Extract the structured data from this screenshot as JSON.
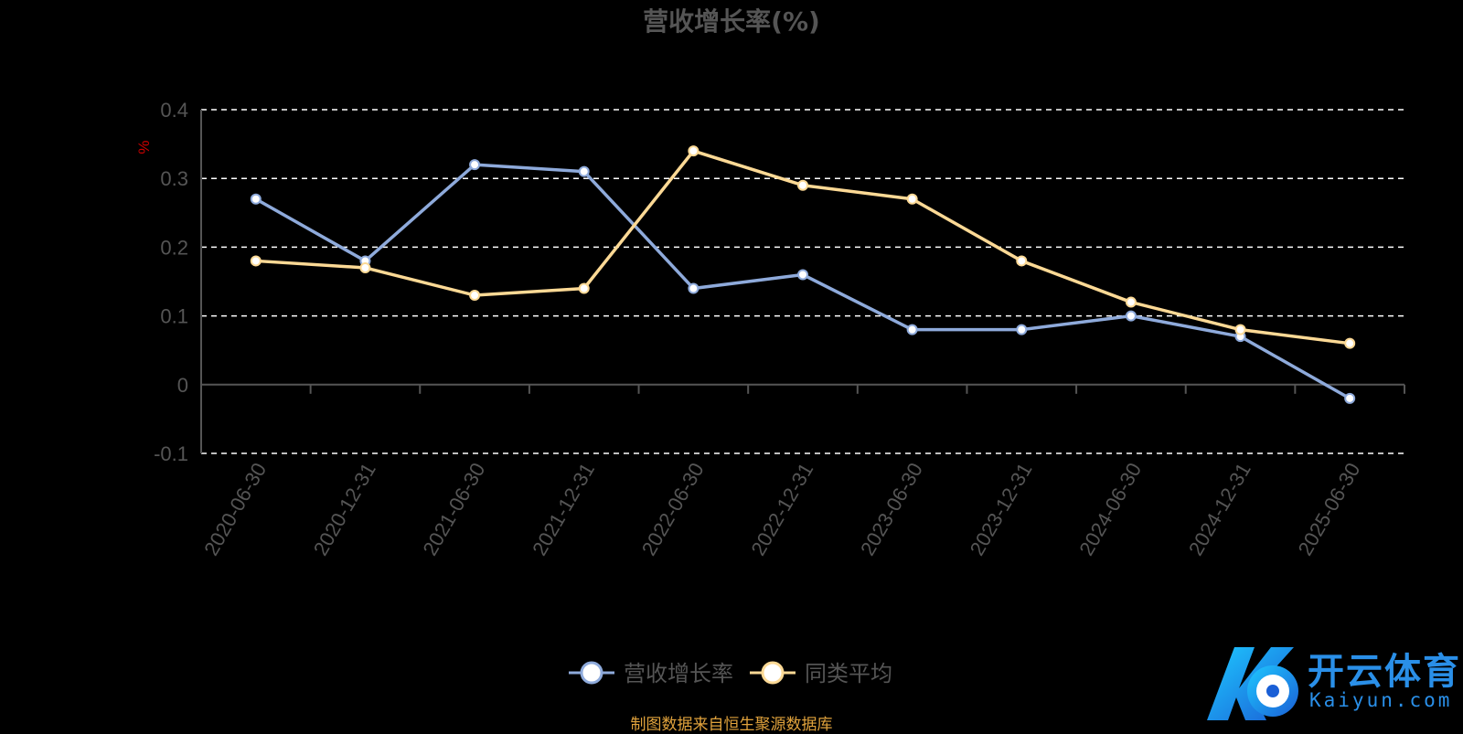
{
  "chart_data": {
    "type": "line",
    "title": "营收增长率(%)",
    "ylabel": "%",
    "xlabel": "",
    "categories": [
      "2020-06-30",
      "2020-12-31",
      "2021-06-30",
      "2021-12-31",
      "2022-06-30",
      "2022-12-31",
      "2023-06-30",
      "2023-12-31",
      "2024-06-30",
      "2024-12-31",
      "2025-06-30"
    ],
    "ylim": [
      -0.1,
      0.4
    ],
    "yticks": [
      "0.4",
      "0.3",
      "0.2",
      "0.1",
      "0",
      "-0.1"
    ],
    "grid": true,
    "legend_position": "bottom",
    "series": [
      {
        "name": "营收增长率",
        "color": "#8eaadb",
        "values": [
          0.27,
          0.18,
          0.32,
          0.31,
          0.14,
          0.16,
          0.08,
          0.08,
          0.1,
          0.07,
          -0.02
        ]
      },
      {
        "name": "同类平均",
        "color": "#fcd995",
        "values": [
          0.18,
          0.17,
          0.13,
          0.14,
          0.34,
          0.29,
          0.27,
          0.18,
          0.12,
          0.08,
          0.06
        ]
      }
    ]
  },
  "source": "制图数据来自恒生聚源数据库",
  "logo": {
    "name": "开云体育",
    "sub": "Kaiyun.com"
  },
  "colors": {
    "grid": "#ffffff",
    "axis": "#555555",
    "ylabel": "#cc0000",
    "source": "#e0a23c",
    "logo": "#2a8fe8"
  }
}
